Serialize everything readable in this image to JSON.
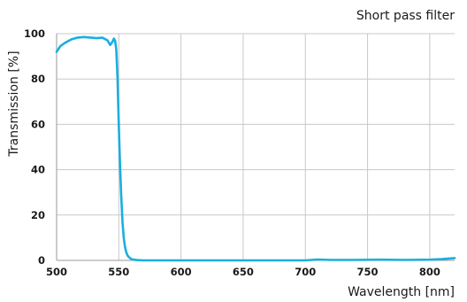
{
  "chart_data": {
    "type": "line",
    "title": "Short pass filter",
    "xlabel": "Wavelength [nm]",
    "ylabel": "Transmission [%]",
    "xlim": [
      500,
      820
    ],
    "ylim": [
      0,
      100
    ],
    "xticks": [
      500,
      550,
      600,
      650,
      700,
      750,
      800
    ],
    "yticks": [
      0,
      20,
      40,
      60,
      80,
      100
    ],
    "grid": true,
    "legend": "none",
    "series": [
      {
        "color": "#1aaee0",
        "x": [
          500,
          503,
          507,
          512,
          517,
          522,
          527,
          532,
          537,
          541,
          543,
          545,
          546,
          547,
          548,
          549,
          550,
          551,
          552,
          553,
          554,
          555,
          556,
          557,
          558,
          559,
          560,
          562,
          565,
          570,
          600,
          650,
          700,
          710,
          720,
          740,
          760,
          780,
          800,
          810,
          820
        ],
        "y": [
          92,
          94.5,
          96,
          97.5,
          98.3,
          98.5,
          98.3,
          98.0,
          98.2,
          97.0,
          95.0,
          96.5,
          97.8,
          97.0,
          93.0,
          80.0,
          60.0,
          42.0,
          28.0,
          17.0,
          10.0,
          6.0,
          3.5,
          2.2,
          1.5,
          1.0,
          0.6,
          0.3,
          0.1,
          0.0,
          0.0,
          0.0,
          0.0,
          0.4,
          0.2,
          0.2,
          0.3,
          0.2,
          0.3,
          0.6,
          1.0
        ]
      }
    ]
  }
}
